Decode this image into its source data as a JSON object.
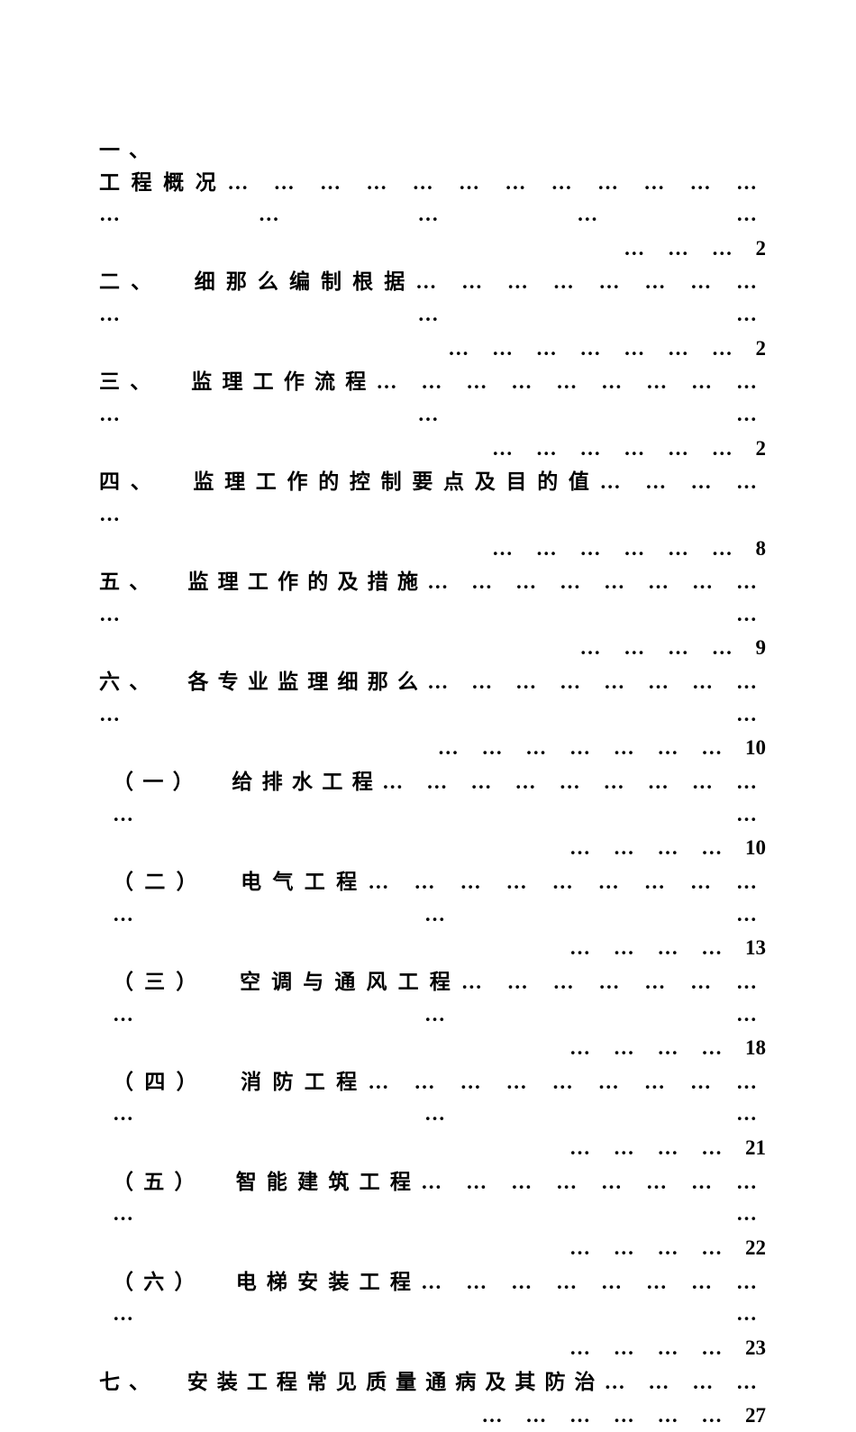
{
  "entries": [
    {
      "marker": "一、",
      "title": "工程概况",
      "line1_dots": "… … … … … … … … … … … … … … … … …",
      "line2_dots": "… … …",
      "page": "2",
      "standalone_marker": true
    },
    {
      "marker": "二、",
      "title": "细那么编制根据",
      "line1_dots": "… … … … … … … … … … …",
      "line2_dots": "… … … … … … …",
      "page": "2"
    },
    {
      "marker": "三、",
      "title": "监理工作流程",
      "line1_dots": "… … … … … … … … … … … …",
      "line2_dots": "… … … … … …",
      "page": "2"
    },
    {
      "marker": "四、",
      "title": "监理工作的控制要点及目的值",
      "line1_dots": "… … … … …",
      "line2_dots": "… … … … … …",
      "page": "8"
    },
    {
      "marker": "五、",
      "title": "监理工作的及措施",
      "line1_dots": "… … … … … … … … … …",
      "line2_dots": "… … … …",
      "page": "9"
    },
    {
      "marker": "六、",
      "title": "各专业监理细那么",
      "line1_dots": "… … … … … … … … … …",
      "line2_dots": "… … … … … … …",
      "page": "10"
    },
    {
      "marker": "（一）",
      "title": "给排水工程",
      "line1_dots": "… … … … … … … … … … …",
      "line2_dots": "… … … …",
      "page": "10",
      "sub": true
    },
    {
      "marker": "（二）",
      "title": "电气工程",
      "line1_dots": "… … … … … … … … … … … …",
      "line2_dots": "… … … …",
      "page": "13",
      "sub": true
    },
    {
      "marker": "（三）",
      "title": "空调与通风工程",
      "line1_dots": "… … … … … … … … … …",
      "line2_dots": "… … … …",
      "page": "18",
      "sub": true
    },
    {
      "marker": "（四）",
      "title": "消防工程",
      "line1_dots": "… … … … … … … … … … … …",
      "line2_dots": "… … … …",
      "page": "21",
      "sub": true
    },
    {
      "marker": "（五）",
      "title": "智能建筑工程",
      "line1_dots": "… … … … … … … … … …",
      "line2_dots": "… … … …",
      "page": "22",
      "sub": true
    },
    {
      "marker": "（六）",
      "title": "电梯安装工程",
      "line1_dots": "… … … … … … … … … …",
      "line2_dots": "… … … …",
      "page": "23",
      "sub": true
    },
    {
      "marker": "七、",
      "title": "安装工程常见质量通病及其防治",
      "line1_dots": "… … … …",
      "line2_dots": "… … … … … …",
      "page": "27"
    }
  ]
}
